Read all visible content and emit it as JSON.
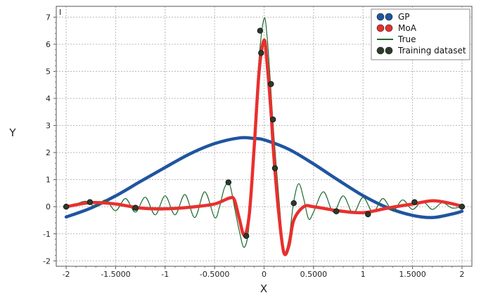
{
  "chart_data": {
    "type": "line",
    "xlabel": "X",
    "ylabel": "Y",
    "xlim": [
      -2.1,
      2.1
    ],
    "ylim": [
      -2.2,
      7.4
    ],
    "grid": true,
    "legend_position": "top-right",
    "x_ticks": [
      -2,
      -1.5,
      -1,
      -0.5,
      0,
      0.5,
      1,
      1.5,
      2
    ],
    "x_tick_labels": [
      "-2",
      "-1.5000",
      "-1",
      "-0.5000",
      "0",
      "0.5000",
      "1",
      "1.5000",
      "2"
    ],
    "y_ticks": [
      -2,
      -1,
      0,
      1,
      2,
      3,
      4,
      5,
      6,
      7
    ],
    "y_tick_labels": [
      "-2",
      "-1",
      "0",
      "1",
      "2",
      "3",
      "4",
      "5",
      "6",
      "7"
    ],
    "corner_label": "I",
    "colors": {
      "GP": "#1f55a0",
      "MoA": "#e8302e",
      "True": "#1e6b30",
      "Training dataset": "#2b3a2b"
    },
    "series": [
      {
        "name": "GP",
        "x": [
          -2.0,
          -1.75,
          -1.5,
          -1.25,
          -1.0,
          -0.75,
          -0.5,
          -0.25,
          -0.1,
          0.0,
          0.25,
          0.5,
          0.75,
          1.0,
          1.25,
          1.5,
          1.7,
          1.9,
          2.0
        ],
        "y": [
          -0.38,
          -0.05,
          0.4,
          0.93,
          1.45,
          1.95,
          2.33,
          2.54,
          2.52,
          2.47,
          2.12,
          1.58,
          0.98,
          0.41,
          -0.04,
          -0.32,
          -0.4,
          -0.27,
          -0.17
        ]
      },
      {
        "name": "MoA",
        "x": [
          -2.0,
          -1.75,
          -1.5,
          -1.25,
          -1.0,
          -0.75,
          -0.5,
          -0.35,
          -0.3,
          -0.25,
          -0.2,
          -0.15,
          -0.1,
          -0.05,
          0.0,
          0.03,
          0.07,
          0.1,
          0.15,
          0.2,
          0.25,
          0.3,
          0.4,
          0.5,
          0.75,
          1.0,
          1.25,
          1.5,
          1.7,
          1.85,
          2.0
        ],
        "y": [
          0.0,
          0.15,
          0.1,
          -0.05,
          -0.08,
          -0.02,
          0.1,
          0.32,
          0.25,
          -0.45,
          -1.05,
          -0.3,
          2.2,
          5.0,
          6.15,
          5.3,
          3.5,
          1.8,
          -0.3,
          -1.7,
          -1.45,
          -0.5,
          0.0,
          0.0,
          -0.15,
          -0.22,
          -0.05,
          0.1,
          0.22,
          0.15,
          0.02
        ]
      },
      {
        "name": "True",
        "x": [
          -2.0,
          -1.9,
          -1.8,
          -1.7,
          -1.6,
          -1.5,
          -1.4,
          -1.3,
          -1.2,
          -1.1,
          -1.0,
          -0.9,
          -0.8,
          -0.7,
          -0.6,
          -0.5,
          -0.45,
          -0.4,
          -0.35,
          -0.3,
          -0.25,
          -0.2,
          -0.15,
          -0.1,
          -0.05,
          0.0,
          0.03,
          0.06,
          0.1,
          0.15,
          0.2,
          0.25,
          0.3,
          0.35,
          0.4,
          0.45,
          0.5,
          0.6,
          0.7,
          0.8,
          0.9,
          1.0,
          1.1,
          1.2,
          1.3,
          1.4,
          1.5,
          1.6,
          1.7,
          1.8,
          1.9,
          2.0
        ],
        "y": [
          0.0,
          0.1,
          0.2,
          0.0,
          0.25,
          -0.15,
          0.3,
          -0.2,
          0.35,
          -0.3,
          0.4,
          -0.3,
          0.45,
          -0.4,
          0.55,
          -0.4,
          0.0,
          0.7,
          0.85,
          0.0,
          -0.9,
          -1.5,
          -0.6,
          2.6,
          5.5,
          6.95,
          6.3,
          4.8,
          2.6,
          0.3,
          -1.6,
          -1.2,
          0.2,
          0.85,
          0.3,
          -0.45,
          -0.2,
          0.55,
          -0.2,
          0.4,
          -0.25,
          0.35,
          -0.2,
          0.3,
          -0.15,
          0.25,
          -0.1,
          0.2,
          -0.1,
          0.15,
          -0.05,
          0.0
        ]
      },
      {
        "name": "Training dataset",
        "x": [
          -2.0,
          -1.76,
          -1.3,
          -0.36,
          -0.18,
          -0.04,
          -0.03,
          0.07,
          0.09,
          0.11,
          0.3,
          0.73,
          1.05,
          1.52,
          2.0
        ],
        "y": [
          0.0,
          0.17,
          -0.04,
          0.9,
          -1.08,
          6.5,
          5.68,
          4.53,
          3.22,
          1.42,
          0.13,
          -0.17,
          -0.28,
          0.17,
          0.0
        ]
      }
    ]
  }
}
